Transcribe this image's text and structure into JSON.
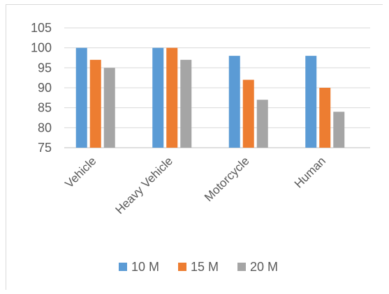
{
  "chart_data": {
    "type": "bar",
    "categories": [
      "Vehicle",
      "Heavy Vehicle",
      "Motorcycle",
      "Human"
    ],
    "series": [
      {
        "name": "10 M",
        "values": [
          100,
          100,
          98,
          98
        ],
        "color": "#5b9bd5"
      },
      {
        "name": "15 M",
        "values": [
          97,
          100,
          92,
          90
        ],
        "color": "#ed7d31"
      },
      {
        "name": "20 M",
        "values": [
          95,
          97,
          87,
          84
        ],
        "color": "#a5a5a5"
      }
    ],
    "ylim": [
      75,
      105
    ],
    "yticks": [
      75,
      80,
      85,
      90,
      95,
      100,
      105
    ],
    "grid": true,
    "legend": "bottom"
  }
}
